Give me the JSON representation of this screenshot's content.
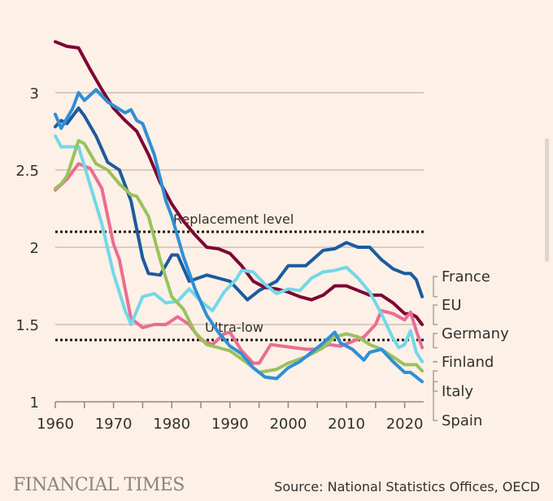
{
  "chart_data": {
    "type": "line",
    "xlim": [
      1960,
      2023
    ],
    "ylim": [
      1,
      3.35
    ],
    "x_ticks": [
      1960,
      1970,
      1980,
      1990,
      2000,
      2010,
      2020
    ],
    "x_tick_labels": [
      "1960",
      "1970",
      "1980",
      "1990",
      "2000",
      "2010",
      "2020"
    ],
    "y_ticks": [
      1,
      1.5,
      2,
      2.5,
      3
    ],
    "y_tick_labels": [
      "1",
      "1.5",
      "2",
      "2.5",
      "3"
    ],
    "grid": true,
    "legend": "right, labels at line ends",
    "reference_lines": [
      {
        "label": "Replacement level",
        "value": 2.1
      },
      {
        "label": "Ultra-low",
        "value": 1.4
      }
    ],
    "series": [
      {
        "name": "France",
        "color": "#1b5b9f",
        "points": [
          [
            1960,
            2.78
          ],
          [
            1961,
            2.82
          ],
          [
            1962,
            2.8
          ],
          [
            1964,
            2.9
          ],
          [
            1965,
            2.85
          ],
          [
            1967,
            2.72
          ],
          [
            1969,
            2.55
          ],
          [
            1971,
            2.5
          ],
          [
            1973,
            2.3
          ],
          [
            1975,
            1.93
          ],
          [
            1976,
            1.83
          ],
          [
            1978,
            1.82
          ],
          [
            1980,
            1.95
          ],
          [
            1981,
            1.95
          ],
          [
            1983,
            1.78
          ],
          [
            1986,
            1.82
          ],
          [
            1988,
            1.8
          ],
          [
            1990,
            1.78
          ],
          [
            1993,
            1.66
          ],
          [
            1995,
            1.72
          ],
          [
            1998,
            1.78
          ],
          [
            2000,
            1.88
          ],
          [
            2003,
            1.88
          ],
          [
            2006,
            1.98
          ],
          [
            2008,
            1.99
          ],
          [
            2010,
            2.03
          ],
          [
            2012,
            2.0
          ],
          [
            2014,
            2.0
          ],
          [
            2016,
            1.92
          ],
          [
            2018,
            1.86
          ],
          [
            2020,
            1.83
          ],
          [
            2021,
            1.83
          ],
          [
            2022,
            1.79
          ],
          [
            2023,
            1.68
          ]
        ]
      },
      {
        "name": "EU",
        "color": "#7d0634",
        "points": [
          [
            1960,
            3.33
          ],
          [
            1962,
            3.3
          ],
          [
            1964,
            3.29
          ],
          [
            1966,
            3.15
          ],
          [
            1968,
            3.02
          ],
          [
            1970,
            2.9
          ],
          [
            1972,
            2.82
          ],
          [
            1974,
            2.75
          ],
          [
            1976,
            2.6
          ],
          [
            1978,
            2.42
          ],
          [
            1980,
            2.28
          ],
          [
            1982,
            2.17
          ],
          [
            1984,
            2.08
          ],
          [
            1986,
            2.0
          ],
          [
            1988,
            1.99
          ],
          [
            1990,
            1.96
          ],
          [
            1992,
            1.88
          ],
          [
            1994,
            1.78
          ],
          [
            1996,
            1.74
          ],
          [
            1998,
            1.73
          ],
          [
            2000,
            1.71
          ],
          [
            2002,
            1.68
          ],
          [
            2004,
            1.66
          ],
          [
            2006,
            1.69
          ],
          [
            2008,
            1.75
          ],
          [
            2010,
            1.75
          ],
          [
            2012,
            1.72
          ],
          [
            2014,
            1.69
          ],
          [
            2016,
            1.69
          ],
          [
            2018,
            1.64
          ],
          [
            2020,
            1.57
          ],
          [
            2021,
            1.57
          ],
          [
            2022,
            1.55
          ],
          [
            2023,
            1.5
          ]
        ]
      },
      {
        "name": "Germany",
        "color": "#ea6d93",
        "points": [
          [
            1960,
            2.37
          ],
          [
            1962,
            2.44
          ],
          [
            1964,
            2.54
          ],
          [
            1966,
            2.51
          ],
          [
            1968,
            2.38
          ],
          [
            1970,
            2.02
          ],
          [
            1971,
            1.92
          ],
          [
            1973,
            1.54
          ],
          [
            1975,
            1.48
          ],
          [
            1977,
            1.5
          ],
          [
            1979,
            1.5
          ],
          [
            1981,
            1.55
          ],
          [
            1983,
            1.5
          ],
          [
            1985,
            1.4
          ],
          [
            1987,
            1.37
          ],
          [
            1989,
            1.44
          ],
          [
            1990,
            1.45
          ],
          [
            1992,
            1.33
          ],
          [
            1994,
            1.25
          ],
          [
            1995,
            1.25
          ],
          [
            1997,
            1.37
          ],
          [
            1999,
            1.36
          ],
          [
            2001,
            1.35
          ],
          [
            2003,
            1.34
          ],
          [
            2005,
            1.34
          ],
          [
            2007,
            1.37
          ],
          [
            2009,
            1.36
          ],
          [
            2011,
            1.39
          ],
          [
            2013,
            1.42
          ],
          [
            2015,
            1.5
          ],
          [
            2016,
            1.59
          ],
          [
            2018,
            1.57
          ],
          [
            2020,
            1.53
          ],
          [
            2021,
            1.58
          ],
          [
            2022,
            1.46
          ],
          [
            2023,
            1.35
          ]
        ]
      },
      {
        "name": "Finland",
        "color": "#72d8e8",
        "points": [
          [
            1960,
            2.72
          ],
          [
            1961,
            2.65
          ],
          [
            1964,
            2.65
          ],
          [
            1966,
            2.4
          ],
          [
            1968,
            2.15
          ],
          [
            1970,
            1.83
          ],
          [
            1972,
            1.59
          ],
          [
            1973,
            1.5
          ],
          [
            1975,
            1.68
          ],
          [
            1977,
            1.7
          ],
          [
            1979,
            1.64
          ],
          [
            1981,
            1.65
          ],
          [
            1983,
            1.73
          ],
          [
            1985,
            1.65
          ],
          [
            1987,
            1.59
          ],
          [
            1989,
            1.71
          ],
          [
            1991,
            1.79
          ],
          [
            1992,
            1.85
          ],
          [
            1994,
            1.84
          ],
          [
            1996,
            1.76
          ],
          [
            1998,
            1.7
          ],
          [
            2000,
            1.73
          ],
          [
            2002,
            1.72
          ],
          [
            2004,
            1.8
          ],
          [
            2006,
            1.84
          ],
          [
            2008,
            1.85
          ],
          [
            2010,
            1.87
          ],
          [
            2012,
            1.8
          ],
          [
            2014,
            1.71
          ],
          [
            2016,
            1.57
          ],
          [
            2018,
            1.41
          ],
          [
            2019,
            1.35
          ],
          [
            2020,
            1.37
          ],
          [
            2021,
            1.46
          ],
          [
            2022,
            1.32
          ],
          [
            2023,
            1.26
          ]
        ]
      },
      {
        "name": "Italy",
        "color": "#98c35c",
        "points": [
          [
            1960,
            2.38
          ],
          [
            1961,
            2.41
          ],
          [
            1962,
            2.46
          ],
          [
            1964,
            2.69
          ],
          [
            1965,
            2.67
          ],
          [
            1967,
            2.54
          ],
          [
            1969,
            2.5
          ],
          [
            1971,
            2.41
          ],
          [
            1973,
            2.34
          ],
          [
            1974,
            2.33
          ],
          [
            1976,
            2.2
          ],
          [
            1978,
            1.92
          ],
          [
            1980,
            1.68
          ],
          [
            1982,
            1.6
          ],
          [
            1984,
            1.45
          ],
          [
            1986,
            1.37
          ],
          [
            1988,
            1.35
          ],
          [
            1990,
            1.33
          ],
          [
            1993,
            1.25
          ],
          [
            1995,
            1.19
          ],
          [
            1998,
            1.21
          ],
          [
            2000,
            1.25
          ],
          [
            2003,
            1.29
          ],
          [
            2006,
            1.35
          ],
          [
            2008,
            1.42
          ],
          [
            2010,
            1.44
          ],
          [
            2012,
            1.42
          ],
          [
            2014,
            1.37
          ],
          [
            2016,
            1.34
          ],
          [
            2018,
            1.29
          ],
          [
            2020,
            1.24
          ],
          [
            2022,
            1.24
          ],
          [
            2023,
            1.2
          ]
        ]
      },
      {
        "name": "Spain",
        "color": "#2f8fd6",
        "points": [
          [
            1960,
            2.86
          ],
          [
            1961,
            2.77
          ],
          [
            1963,
            2.9
          ],
          [
            1964,
            3.0
          ],
          [
            1965,
            2.95
          ],
          [
            1967,
            3.02
          ],
          [
            1969,
            2.94
          ],
          [
            1972,
            2.87
          ],
          [
            1973,
            2.89
          ],
          [
            1974,
            2.82
          ],
          [
            1975,
            2.8
          ],
          [
            1977,
            2.6
          ],
          [
            1979,
            2.3
          ],
          [
            1980,
            2.2
          ],
          [
            1982,
            1.94
          ],
          [
            1984,
            1.73
          ],
          [
            1986,
            1.56
          ],
          [
            1988,
            1.45
          ],
          [
            1990,
            1.36
          ],
          [
            1992,
            1.31
          ],
          [
            1994,
            1.22
          ],
          [
            1996,
            1.16
          ],
          [
            1998,
            1.15
          ],
          [
            2000,
            1.22
          ],
          [
            2002,
            1.26
          ],
          [
            2004,
            1.32
          ],
          [
            2006,
            1.38
          ],
          [
            2008,
            1.45
          ],
          [
            2009,
            1.38
          ],
          [
            2011,
            1.34
          ],
          [
            2013,
            1.27
          ],
          [
            2014,
            1.32
          ],
          [
            2016,
            1.34
          ],
          [
            2018,
            1.26
          ],
          [
            2020,
            1.19
          ],
          [
            2021,
            1.19
          ],
          [
            2023,
            1.13
          ]
        ]
      }
    ]
  },
  "footer": {
    "brand": "FINANCIAL TIMES",
    "source": "Source: National Statistics Offices, OECD"
  },
  "colors": {
    "background": "#fdf0e6",
    "grid": "#c9c0b9",
    "text": "#33302e"
  }
}
